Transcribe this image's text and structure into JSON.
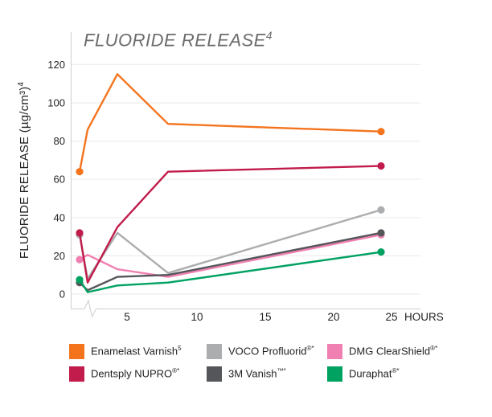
{
  "title": {
    "text": "FLUORIDE RELEASE",
    "superscript": "4"
  },
  "y_axis": {
    "label": "FLUORIDE RELEASE (µg/cm³)",
    "label_superscript": "4",
    "ticks": [
      0,
      20,
      40,
      60,
      80,
      100,
      120
    ]
  },
  "x_axis": {
    "ticks": [
      5,
      10,
      15,
      20,
      25
    ],
    "unit_label": "HOURS",
    "has_axis_break": true
  },
  "chart_data": {
    "type": "line",
    "title": "FLUORIDE RELEASE⁴",
    "xlabel": "HOURS",
    "ylabel": "FLUORIDE RELEASE (µg/cm³)⁴",
    "ylim": [
      0,
      120
    ],
    "xlim": [
      0,
      25
    ],
    "grid": true,
    "legend_position": "bottom",
    "markers": "first-and-last-point",
    "x_hours": [
      0.5,
      1,
      4,
      8,
      24
    ],
    "series": [
      {
        "name": "Enamelast Varnish⁵",
        "color": "#f4741e",
        "values": [
          64,
          86,
          115,
          89,
          85
        ]
      },
      {
        "name": "Dentsply NUPRO®*",
        "color": "#c11c4b",
        "values": [
          32,
          6,
          35,
          64,
          67
        ]
      },
      {
        "name": "VOCO Profluorid®*",
        "color": "#abadaf",
        "values": [
          31,
          8,
          32,
          11,
          44
        ]
      },
      {
        "name": "3M Vanish™*",
        "color": "#54565a",
        "values": [
          6,
          2,
          9,
          10,
          32
        ]
      },
      {
        "name": "DMG ClearShield®*",
        "color": "#f180b2",
        "values": [
          18,
          20.5,
          13,
          9,
          31
        ]
      },
      {
        "name": "Duraphat®*",
        "color": "#00a261",
        "values": [
          7.5,
          1,
          4.5,
          6,
          22
        ]
      }
    ]
  },
  "legend": {
    "items": [
      {
        "name": "Enamelast Varnish",
        "sup": "5",
        "color": "#f4741e"
      },
      {
        "name": "VOCO Profluorid",
        "sup": "®*",
        "color": "#abadaf"
      },
      {
        "name": "DMG ClearShield",
        "sup": "®*",
        "color": "#f180b2"
      },
      {
        "name": "Dentsply NUPRO",
        "sup": "®*",
        "color": "#c11c4b"
      },
      {
        "name": "3M Vanish",
        "sup": "™*",
        "color": "#54565a"
      },
      {
        "name": "Duraphat",
        "sup": "®*",
        "color": "#00a261"
      }
    ]
  },
  "colors": {
    "grid": "#ededed",
    "axis": "#d4d4d6",
    "tick_text": "#231f20",
    "title_text": "#6a6b6e"
  }
}
